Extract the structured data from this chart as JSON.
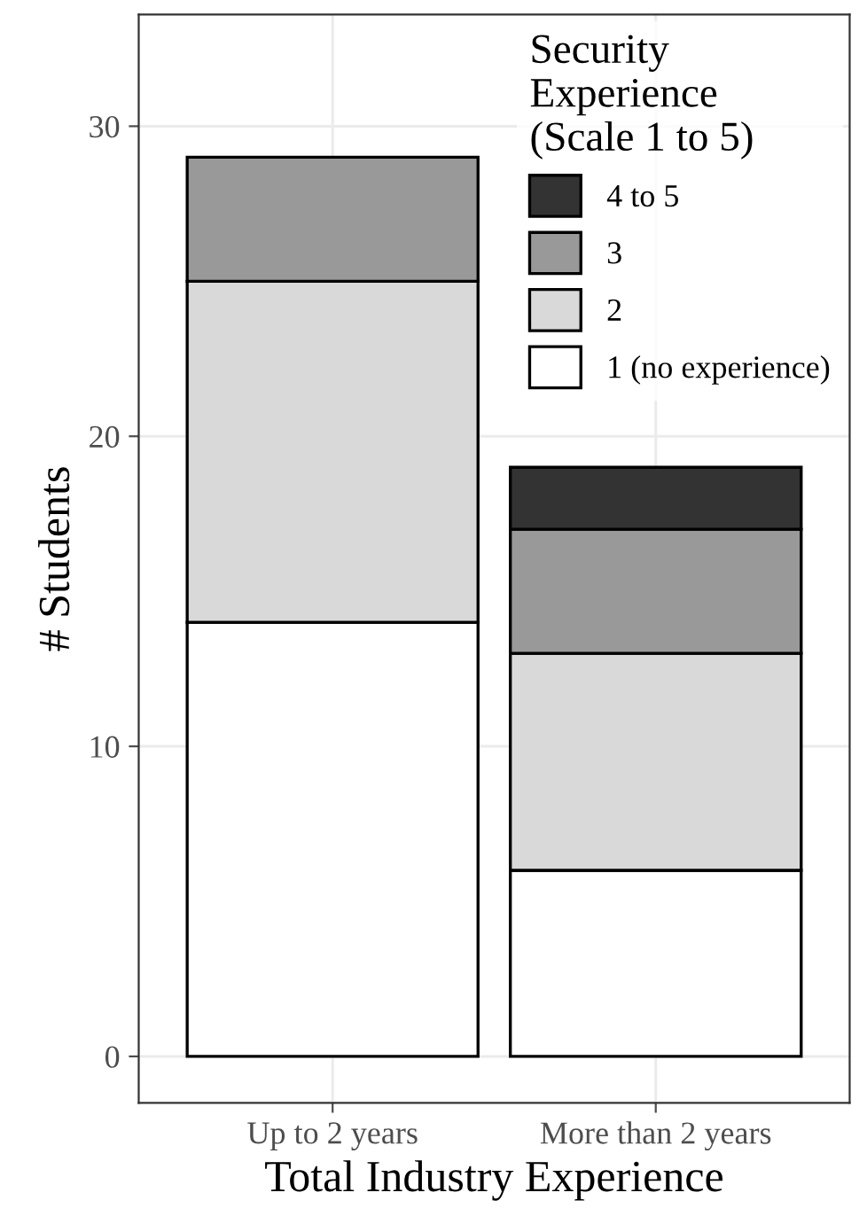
{
  "chart_data": {
    "type": "bar",
    "stacked": true,
    "xlabel": "Total Industry Experience",
    "ylabel": "# Students",
    "legend_title": "Security\nExperience\n(Scale 1 to 5)",
    "categories": [
      "Up to 2 years",
      "More than 2 years"
    ],
    "series": [
      {
        "name": "1 (no experience)",
        "color": "#ffffff",
        "values": [
          14,
          6
        ]
      },
      {
        "name": "2",
        "color": "#d9d9d9",
        "values": [
          11,
          7
        ]
      },
      {
        "name": "3",
        "color": "#999999",
        "values": [
          4,
          4
        ]
      },
      {
        "name": "4 to 5",
        "color": "#333333",
        "values": [
          0,
          2
        ]
      }
    ],
    "ylim": [
      -1.5,
      33.6
    ],
    "yticks": [
      0,
      10,
      20,
      30
    ],
    "grid": true,
    "legend": "top right"
  }
}
